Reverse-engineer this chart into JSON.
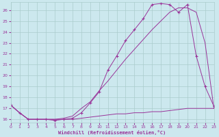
{
  "xlabel": "Windchill (Refroidissement éolien,°C)",
  "bg_color": "#cce8ee",
  "line_color": "#993399",
  "grid_color": "#aacccc",
  "xmin": 0,
  "xmax": 23,
  "ymin": 15.7,
  "ymax": 26.7,
  "yticks": [
    16,
    17,
    18,
    19,
    20,
    21,
    22,
    23,
    24,
    25,
    26
  ],
  "xticks": [
    0,
    1,
    2,
    3,
    4,
    5,
    6,
    7,
    8,
    9,
    10,
    11,
    12,
    13,
    14,
    15,
    16,
    17,
    18,
    19,
    20,
    21,
    22,
    23
  ],
  "line1_x": [
    0,
    1,
    2,
    3,
    4,
    5,
    6,
    7,
    8,
    9,
    10,
    11,
    12,
    13,
    14,
    15,
    16,
    17,
    18,
    19,
    20,
    21,
    22,
    23
  ],
  "line1_y": [
    17.3,
    16.6,
    16.0,
    16.0,
    16.0,
    16.0,
    16.0,
    16.0,
    16.1,
    16.2,
    16.3,
    16.4,
    16.5,
    16.5,
    16.6,
    16.6,
    16.7,
    16.7,
    16.8,
    16.9,
    17.0,
    17.0,
    17.0,
    17.0
  ],
  "line2_x": [
    0,
    1,
    2,
    3,
    4,
    5,
    6,
    7,
    8,
    9,
    10,
    11,
    12,
    13,
    14,
    15,
    16,
    17,
    18,
    19,
    20,
    21,
    22,
    23
  ],
  "line2_y": [
    17.3,
    16.6,
    16.0,
    16.0,
    16.0,
    16.0,
    16.1,
    16.3,
    17.0,
    17.6,
    18.6,
    19.5,
    20.5,
    21.5,
    22.4,
    23.3,
    24.2,
    25.0,
    25.8,
    26.2,
    26.2,
    25.8,
    23.0,
    17.0
  ],
  "line3_x": [
    0,
    1,
    2,
    3,
    4,
    5,
    6,
    7,
    8,
    9,
    10,
    11,
    12,
    13,
    14,
    15,
    16,
    17,
    18,
    19,
    20,
    21,
    22,
    23
  ],
  "line3_y": [
    17.3,
    16.6,
    16.0,
    16.0,
    16.0,
    15.9,
    16.0,
    16.1,
    16.6,
    17.5,
    18.5,
    20.5,
    21.8,
    23.2,
    24.2,
    25.2,
    26.5,
    26.6,
    26.5,
    25.8,
    26.5,
    21.8,
    19.0,
    17.2
  ]
}
